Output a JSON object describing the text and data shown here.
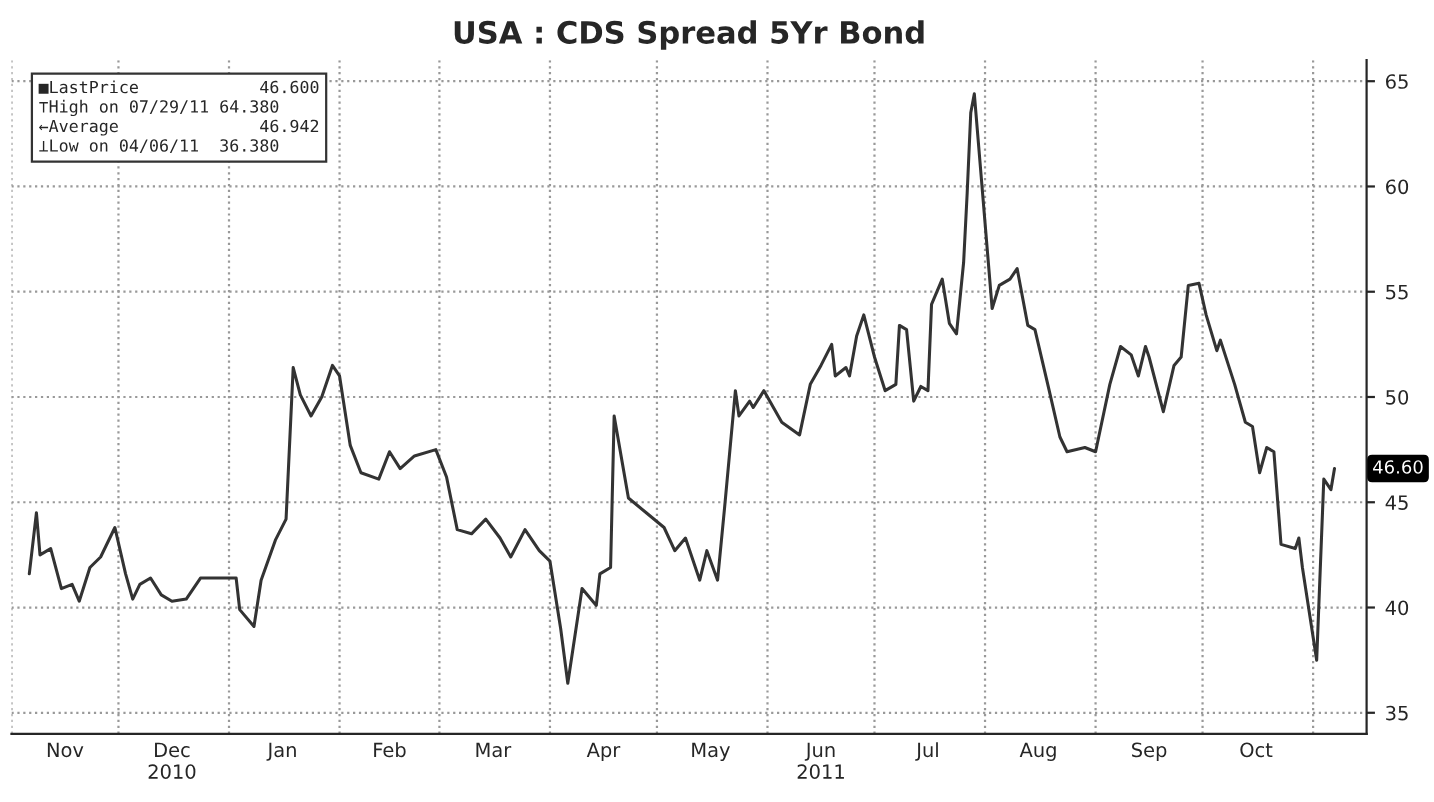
{
  "chart_data": {
    "type": "line",
    "title": "USA : CDS Spread 5Yr Bond",
    "x": [
      "2010-11-06",
      "2010-11-08",
      "2010-11-09",
      "2010-11-12",
      "2010-11-15",
      "2010-11-18",
      "2010-11-20",
      "2010-11-23",
      "2010-11-26",
      "2010-11-30",
      "2010-12-03",
      "2010-12-05",
      "2010-12-07",
      "2010-12-10",
      "2010-12-13",
      "2010-12-16",
      "2010-12-20",
      "2010-12-24",
      "2010-12-29",
      "2011-01-03",
      "2011-01-04",
      "2011-01-08",
      "2011-01-10",
      "2011-01-14",
      "2011-01-17",
      "2011-01-19",
      "2011-01-21",
      "2011-01-24",
      "2011-01-27",
      "2011-01-30",
      "2011-02-01",
      "2011-02-04",
      "2011-02-07",
      "2011-02-12",
      "2011-02-15",
      "2011-02-18",
      "2011-02-22",
      "2011-02-28",
      "2011-03-03",
      "2011-03-06",
      "2011-03-10",
      "2011-03-14",
      "2011-03-18",
      "2011-03-21",
      "2011-03-25",
      "2011-03-29",
      "2011-04-01",
      "2011-04-04",
      "2011-04-06",
      "2011-04-10",
      "2011-04-14",
      "2011-04-15",
      "2011-04-18",
      "2011-04-19",
      "2011-04-23",
      "2011-04-28",
      "2011-05-03",
      "2011-05-06",
      "2011-05-09",
      "2011-05-13",
      "2011-05-15",
      "2011-05-18",
      "2011-05-20",
      "2011-05-23",
      "2011-05-24",
      "2011-05-27",
      "2011-05-28",
      "2011-05-31",
      "2011-06-05",
      "2011-06-10",
      "2011-06-13",
      "2011-06-16",
      "2011-06-19",
      "2011-06-20",
      "2011-06-23",
      "2011-06-24",
      "2011-06-26",
      "2011-06-28",
      "2011-07-01",
      "2011-07-04",
      "2011-07-07",
      "2011-07-08",
      "2011-07-10",
      "2011-07-12",
      "2011-07-14",
      "2011-07-16",
      "2011-07-17",
      "2011-07-20",
      "2011-07-22",
      "2011-07-24",
      "2011-07-26",
      "2011-07-27",
      "2011-07-28",
      "2011-07-29",
      "2011-08-03",
      "2011-08-05",
      "2011-08-08",
      "2011-08-10",
      "2011-08-13",
      "2011-08-15",
      "2011-08-19",
      "2011-08-22",
      "2011-08-24",
      "2011-08-29",
      "2011-09-01",
      "2011-09-05",
      "2011-09-08",
      "2011-09-11",
      "2011-09-13",
      "2011-09-15",
      "2011-09-16",
      "2011-09-20",
      "2011-09-23",
      "2011-09-25",
      "2011-09-27",
      "2011-09-30",
      "2011-10-02",
      "2011-10-05",
      "2011-10-06",
      "2011-10-10",
      "2011-10-13",
      "2011-10-15",
      "2011-10-17",
      "2011-10-19",
      "2011-10-21",
      "2011-10-23",
      "2011-10-27",
      "2011-10-28",
      "2011-10-29",
      "2011-11-02",
      "2011-11-04",
      "2011-11-06",
      "2011-11-07"
    ],
    "series": [
      {
        "color": "#333333",
        "values": [
          41.6,
          44.5,
          42.5,
          42.8,
          40.9,
          41.1,
          40.3,
          41.9,
          42.4,
          43.8,
          41.6,
          40.4,
          41.1,
          41.4,
          40.6,
          40.3,
          40.4,
          41.4,
          41.4,
          41.4,
          39.9,
          39.1,
          41.3,
          43.2,
          44.2,
          51.4,
          50.1,
          49.1,
          50.0,
          51.5,
          51.0,
          47.7,
          46.4,
          46.1,
          47.4,
          46.6,
          47.2,
          47.5,
          46.2,
          43.7,
          43.5,
          44.2,
          43.3,
          42.4,
          43.7,
          42.7,
          42.2,
          39.0,
          36.4,
          40.9,
          40.1,
          41.6,
          41.9,
          49.1,
          45.2,
          44.5,
          43.8,
          42.7,
          43.3,
          41.3,
          42.7,
          41.3,
          44.8,
          50.3,
          49.1,
          49.8,
          49.5,
          50.3,
          48.8,
          48.2,
          50.6,
          51.5,
          52.5,
          51.0,
          51.4,
          51.0,
          52.9,
          53.9,
          51.9,
          50.3,
          50.6,
          53.4,
          53.2,
          49.8,
          50.5,
          50.3,
          54.4,
          55.6,
          53.5,
          53.0,
          56.4,
          59.7,
          63.5,
          64.4,
          54.2,
          55.3,
          55.6,
          56.1,
          53.4,
          53.2,
          50.3,
          48.1,
          47.4,
          47.6,
          47.4,
          50.6,
          52.4,
          52.0,
          51.0,
          52.4,
          51.9,
          49.3,
          51.5,
          51.9,
          55.3,
          55.4,
          53.9,
          52.2,
          52.7,
          50.6,
          48.8,
          48.6,
          46.4,
          47.6,
          47.4,
          43.0,
          42.8,
          43.3,
          41.9,
          37.5,
          46.1,
          45.6,
          46.6
        ]
      }
    ],
    "xlim": [
      "2010-11-01",
      "2011-11-16"
    ],
    "xticks": [
      {
        "value": "2010-11-01",
        "label": null
      },
      {
        "value": "2010-11-16",
        "label": "Nov"
      },
      {
        "value": "2010-12-01",
        "label": null
      },
      {
        "value": "2010-12-16",
        "label": "Dec\n2010"
      },
      {
        "value": "2011-01-01",
        "label": null
      },
      {
        "value": "2011-01-16",
        "label": "Jan"
      },
      {
        "value": "2011-02-01",
        "label": null
      },
      {
        "value": "2011-02-15",
        "label": "Feb"
      },
      {
        "value": "2011-03-01",
        "label": null
      },
      {
        "value": "2011-03-16",
        "label": "Mar"
      },
      {
        "value": "2011-04-01",
        "label": null
      },
      {
        "value": "2011-04-16",
        "label": "Apr"
      },
      {
        "value": "2011-05-01",
        "label": null
      },
      {
        "value": "2011-05-16",
        "label": "May"
      },
      {
        "value": "2011-06-01",
        "label": null
      },
      {
        "value": "2011-06-16",
        "label": "Jun\n2011"
      },
      {
        "value": "2011-07-01",
        "label": null
      },
      {
        "value": "2011-07-16",
        "label": "Jul"
      },
      {
        "value": "2011-08-01",
        "label": null
      },
      {
        "value": "2011-08-16",
        "label": "Aug"
      },
      {
        "value": "2011-09-01",
        "label": null
      },
      {
        "value": "2011-09-16",
        "label": "Sep"
      },
      {
        "value": "2011-10-01",
        "label": null
      },
      {
        "value": "2011-10-16",
        "label": "Oct"
      },
      {
        "value": "2011-11-01",
        "label": null
      }
    ],
    "ylim": [
      34,
      66
    ],
    "yticks": [
      35,
      40,
      45,
      50,
      55,
      60,
      65
    ],
    "grid": true,
    "line_style": "solid",
    "annotations": [
      "■LastPrice            46.600",
      "⊤High on 07/29/11 64.380",
      "←Average              46.942",
      "⊥Low on 04/06/11  36.380",
      {
        "text": "46.60",
        "y": 46.6
      }
    ]
  }
}
